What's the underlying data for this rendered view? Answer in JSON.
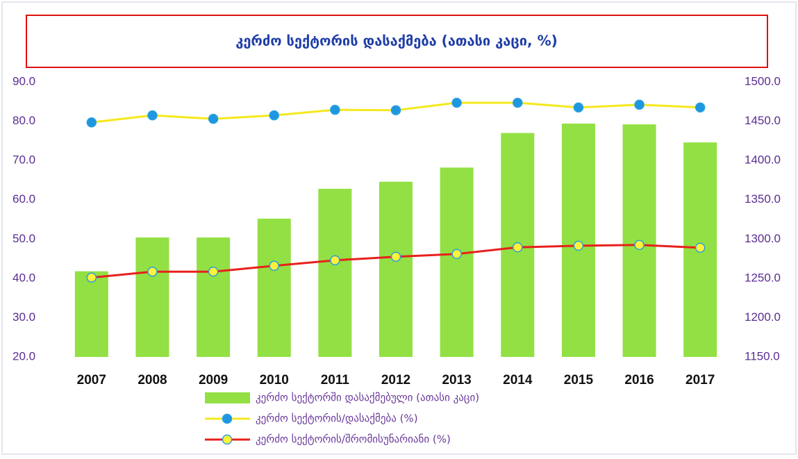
{
  "chart_data": {
    "type": "bar",
    "title": "კერძო სექტორის დასაქმება (ათასი კაცი, %)",
    "categories": [
      "2007",
      "2008",
      "2009",
      "2010",
      "2011",
      "2012",
      "2013",
      "2014",
      "2015",
      "2016",
      "2017"
    ],
    "series": [
      {
        "name": "კერძო სექტორში დასაქმებული (ათასი კაცი)",
        "type": "bar",
        "axis": "y2",
        "color": "#92e043",
        "values": [
          1259,
          1302,
          1302,
          1326,
          1364,
          1373,
          1391,
          1435,
          1447,
          1446,
          1423
        ]
      },
      {
        "name": "კერძო სექტორის/დასაქმება (%)",
        "type": "line",
        "axis": "y",
        "color": "#f5e81c",
        "marker_color": "#1f97e0",
        "values": [
          79.7,
          81.5,
          80.6,
          81.5,
          82.9,
          82.8,
          84.7,
          84.7,
          83.5,
          84.2,
          83.5
        ]
      },
      {
        "name": "კერძო სექტორის/შრომისუნარიანი (%)",
        "type": "line",
        "axis": "y",
        "color": "#e8201c",
        "marker_color": "#fff23a",
        "values": [
          40.2,
          41.7,
          41.7,
          43.2,
          44.6,
          45.5,
          46.2,
          47.9,
          48.3,
          48.5,
          47.8
        ]
      }
    ],
    "ylim": [
      20,
      90
    ],
    "yticks": [
      {
        "value": 20,
        "label": "20.0"
      },
      {
        "value": 30,
        "label": "30.0"
      },
      {
        "value": 40,
        "label": "40.0"
      },
      {
        "value": 50,
        "label": "50.0"
      },
      {
        "value": 60,
        "label": "60.0"
      },
      {
        "value": 70,
        "label": "70.0"
      },
      {
        "value": 80,
        "label": "80.0"
      },
      {
        "value": 90,
        "label": "90.0"
      }
    ],
    "y2lim": [
      1150,
      1500
    ],
    "y2ticks": [
      {
        "value": 1150,
        "label": "1150.0"
      },
      {
        "value": 1200,
        "label": "1200.0"
      },
      {
        "value": 1250,
        "label": "1250.0"
      },
      {
        "value": 1300,
        "label": "1300.0"
      },
      {
        "value": 1350,
        "label": "1350.0"
      },
      {
        "value": 1400,
        "label": "1400.0"
      },
      {
        "value": 1450,
        "label": "1450.0"
      },
      {
        "value": 1500,
        "label": "1500.0"
      }
    ],
    "grid": false,
    "legend": "bottom"
  }
}
